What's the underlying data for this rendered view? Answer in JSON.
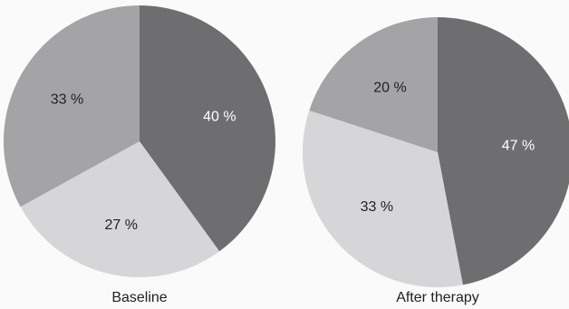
{
  "chart_data": [
    {
      "type": "pie",
      "title": "Baseline",
      "slices": [
        {
          "label": "40 %",
          "value": 40,
          "color": "#6e6e70"
        },
        {
          "label": "27 %",
          "value": 27,
          "color": "#d6d6d8"
        },
        {
          "label": "33 %",
          "value": 33,
          "color": "#a4a4a6"
        }
      ],
      "label_colors": [
        "#ffffff",
        "#222222",
        "#222222"
      ]
    },
    {
      "type": "pie",
      "title": "After therapy",
      "slices": [
        {
          "label": "47 %",
          "value": 47,
          "color": "#6e6e70"
        },
        {
          "label": "33 %",
          "value": 33,
          "color": "#d6d6d8"
        },
        {
          "label": "20 %",
          "value": 20,
          "color": "#a4a4a6"
        }
      ],
      "label_colors": [
        "#ffffff",
        "#222222",
        "#222222"
      ]
    }
  ]
}
